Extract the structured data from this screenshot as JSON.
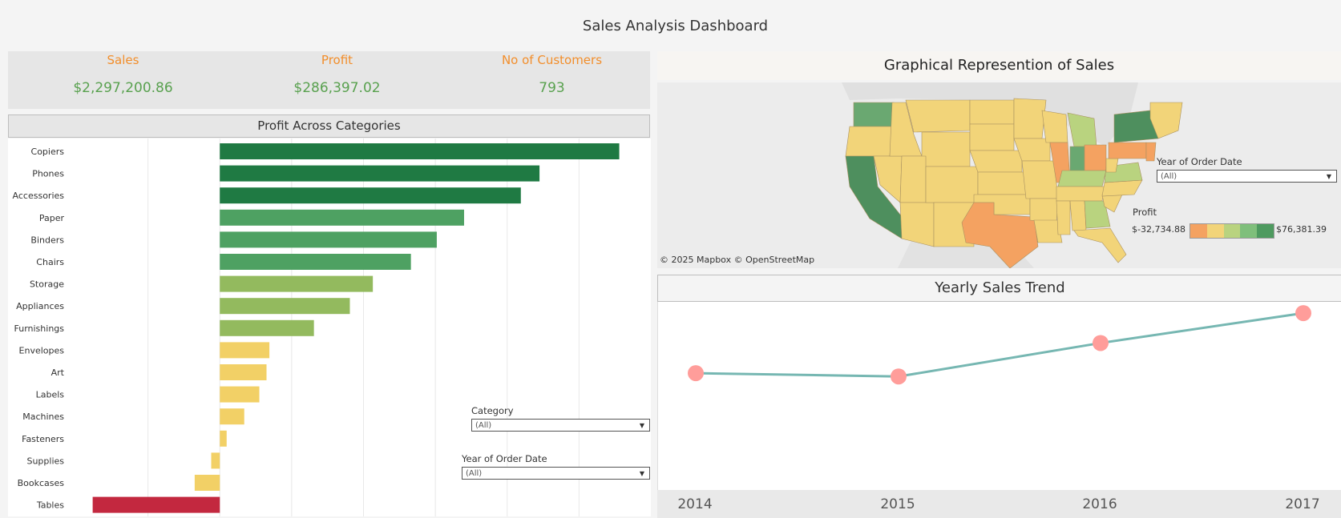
{
  "dashboard": {
    "title": "Sales Analysis Dashboard"
  },
  "kpis": [
    {
      "label": "Sales",
      "value": "$2,297,200.86"
    },
    {
      "label": "Profit",
      "value": "$286,397.02"
    },
    {
      "label": "No of Customers",
      "value": "793"
    }
  ],
  "profit_panel": {
    "title": "Profit Across Categories"
  },
  "filters": {
    "category": {
      "title": "Category",
      "value": "(All)"
    },
    "year_left": {
      "title": "Year of Order Date",
      "value": "(All)"
    },
    "year_map": {
      "title": "Year of Order Date",
      "value": "(All)"
    }
  },
  "map_panel": {
    "title": "Graphical Represention of Sales",
    "attribution": "© 2025 Mapbox  © OpenStreetMap",
    "legend": {
      "title": "Profit",
      "min": "$-32,734.88",
      "max": "$76,381.39",
      "colors": [
        "#f4a261",
        "#f2d479",
        "#b9d37f",
        "#7fbf7b",
        "#4e9a5f"
      ]
    }
  },
  "trend_panel": {
    "title": "Yearly Sales Trend"
  },
  "chart_data": [
    {
      "type": "bar",
      "orientation": "horizontal",
      "title": "Profit Across Categories",
      "categories": [
        "Copiers",
        "Phones",
        "Accessories",
        "Paper",
        "Binders",
        "Chairs",
        "Storage",
        "Appliances",
        "Furnishings",
        "Envelopes",
        "Art",
        "Labels",
        "Machines",
        "Fasteners",
        "Supplies",
        "Bookcases",
        "Tables"
      ],
      "values": [
        55600,
        44500,
        41900,
        34000,
        30200,
        26600,
        21300,
        18100,
        13100,
        6900,
        6500,
        5500,
        3400,
        950,
        -1200,
        -3500,
        -17700
      ],
      "colors": [
        "#1f7a43",
        "#1f7a43",
        "#1f7a43",
        "#4ea162",
        "#4ea162",
        "#4ea162",
        "#93ba5e",
        "#93ba5e",
        "#93ba5e",
        "#f2d066",
        "#f2d066",
        "#f2d066",
        "#f2d066",
        "#f2d066",
        "#f2d066",
        "#f2d066",
        "#c3283f"
      ],
      "xlim": [
        -20000,
        60000
      ],
      "grid": true
    },
    {
      "type": "line",
      "title": "Yearly Sales Trend",
      "x": [
        "2014",
        "2015",
        "2016",
        "2017"
      ],
      "series": [
        {
          "values": [
            484247,
            470533,
            609206,
            733215
          ]
        }
      ],
      "ylim": [
        0,
        780000
      ],
      "line_color": "#76b7b2",
      "marker_color": "#ff9d9a"
    }
  ]
}
